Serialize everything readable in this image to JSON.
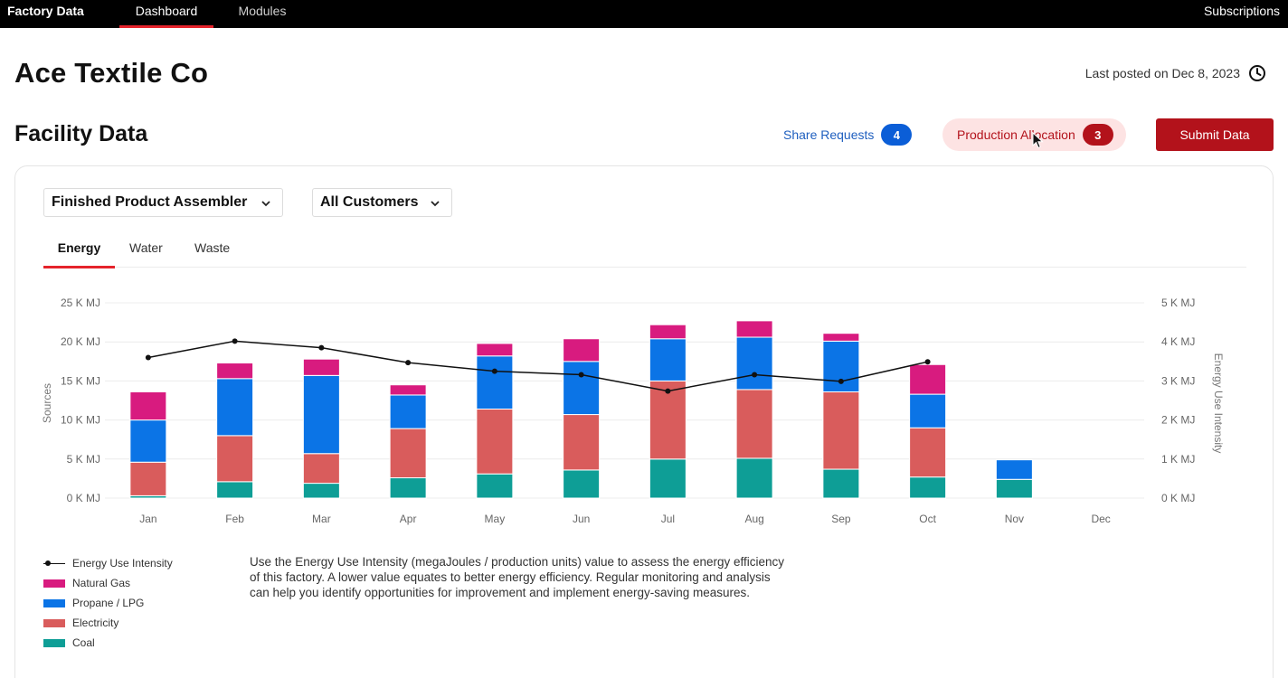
{
  "nav": {
    "brand": "Factory Data",
    "tabs": [
      "Dashboard",
      "Modules"
    ],
    "subscriptions": "Subscriptions"
  },
  "header": {
    "company": "Ace Textile Co",
    "last_posted": "Last posted on Dec 8, 2023"
  },
  "section": {
    "title": "Facility Data",
    "share_requests": {
      "label": "Share Requests",
      "count": "4"
    },
    "production_allocation": {
      "label": "Production Allocation",
      "count": "3"
    },
    "submit_label": "Submit Data"
  },
  "filters": {
    "role": "Finished Product Assembler",
    "customers": "All Customers"
  },
  "tabs": [
    "Energy",
    "Water",
    "Waste"
  ],
  "colors": {
    "natural_gas": "#d81b7f",
    "propane": "#0b74e6",
    "electricity": "#d95c5c",
    "coal": "#0e9e96",
    "line": "#111111",
    "accent": "#e5232b",
    "brand_red": "#b3121b"
  },
  "chart_data": {
    "type": "bar",
    "stacked": true,
    "categories": [
      "Jan",
      "Feb",
      "Mar",
      "Apr",
      "May",
      "Jun",
      "Jul",
      "Aug",
      "Sep",
      "Oct",
      "Nov",
      "Dec"
    ],
    "y_left_ticks": [
      "0 K MJ",
      "5 K MJ",
      "10 K MJ",
      "15 K MJ",
      "20 K MJ",
      "25 K MJ"
    ],
    "y_right_ticks": [
      "0 K MJ",
      "1 K MJ",
      "2 K MJ",
      "3 K MJ",
      "4 K MJ",
      "5 K MJ"
    ],
    "ylabel_left": "Sources",
    "ylabel_right": "Energy Use Intensity",
    "ylim_left": [
      0,
      25000
    ],
    "ylim_right": [
      0,
      5000
    ],
    "grid": true,
    "series": [
      {
        "name": "Coal",
        "color": "#0e9e96",
        "values": [
          300,
          2100,
          1900,
          2600,
          3100,
          3600,
          5000,
          5100,
          3700,
          2700,
          2400,
          0
        ]
      },
      {
        "name": "Electricity",
        "color": "#d95c5c",
        "values": [
          4300,
          5900,
          3800,
          6300,
          8300,
          7100,
          10000,
          8800,
          9900,
          6300,
          0,
          0
        ]
      },
      {
        "name": "Propane / LPG",
        "color": "#0b74e6",
        "values": [
          5400,
          7300,
          10000,
          4300,
          6800,
          6800,
          5400,
          6700,
          6500,
          4300,
          2500,
          0
        ]
      },
      {
        "name": "Natural Gas",
        "color": "#d81b7f",
        "values": [
          3600,
          2000,
          2100,
          1300,
          1600,
          2900,
          1800,
          2100,
          1000,
          3800,
          0,
          0
        ]
      }
    ],
    "line_series": {
      "name": "Energy Use Intensity",
      "axis": "right",
      "values": [
        3600,
        4020,
        3850,
        3470,
        3250,
        3160,
        2740,
        3160,
        2990,
        3490,
        null,
        null
      ]
    }
  },
  "legend": [
    {
      "label": "Energy Use Intensity",
      "kind": "line"
    },
    {
      "label": "Natural Gas",
      "kind": "natural_gas"
    },
    {
      "label": "Propane / LPG",
      "kind": "propane"
    },
    {
      "label": "Electricity",
      "kind": "electricity"
    },
    {
      "label": "Coal",
      "kind": "coal"
    }
  ],
  "note": "Use the Energy Use Intensity (megaJoules / production units) value to assess the energy efficiency of this factory. A lower value equates to better energy efficiency. Regular monitoring and analysis can help you identify opportunities for improvement and implement energy-saving measures."
}
